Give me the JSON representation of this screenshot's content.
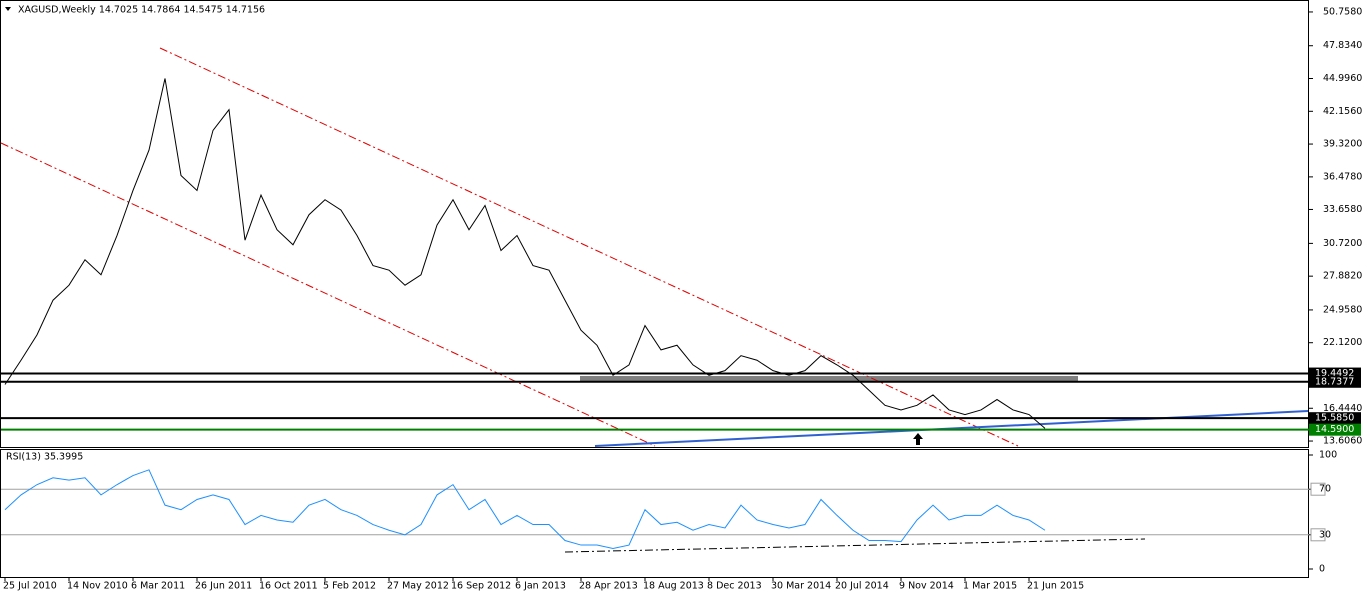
{
  "chart_data": [
    {
      "type": "line",
      "title": "XAGUSD,Weekly  14.7025 14.7864 14.5475 14.7156",
      "color": "#000000",
      "categories": [
        "25 Jul 2010",
        null,
        null,
        null,
        "14 Nov 2010",
        null,
        null,
        null,
        "6 Mar 2011",
        null,
        null,
        null,
        "26 Jun 2011",
        null,
        null,
        null,
        "16 Oct 2011",
        null,
        null,
        null,
        "5 Feb 2012",
        null,
        null,
        null,
        "27 May 2012",
        null,
        null,
        null,
        "16 Sep 2012",
        null,
        null,
        null,
        "6 Jan 2013",
        null,
        null,
        null,
        "28 Apr 2013",
        null,
        null,
        null,
        "18 Aug 2013",
        null,
        null,
        null,
        "8 Dec 2013",
        null,
        null,
        null,
        "30 Mar 2014",
        null,
        null,
        null,
        "20 Jul 2014",
        null,
        null,
        null,
        "9 Nov 2014",
        null,
        null,
        null,
        "1 Mar 2015",
        null,
        null,
        null,
        "21 Jun 2015",
        null
      ],
      "values": [
        18.5,
        20.6,
        22.8,
        25.8,
        27.1,
        29.3,
        28.0,
        31.4,
        35.3,
        38.8,
        45.0,
        36.6,
        35.3,
        40.5,
        42.3,
        31.0,
        34.9,
        31.9,
        30.6,
        33.2,
        34.5,
        33.6,
        31.4,
        28.8,
        28.4,
        27.1,
        28.0,
        32.3,
        34.5,
        31.9,
        34.0,
        30.1,
        31.4,
        28.8,
        28.4,
        25.8,
        23.2,
        21.9,
        19.3,
        20.2,
        23.6,
        21.5,
        21.9,
        20.2,
        19.3,
        19.7,
        21.0,
        20.6,
        19.7,
        19.3,
        19.7,
        21.0,
        20.2,
        19.3,
        18.0,
        16.7,
        16.3,
        16.7,
        17.6,
        16.3,
        15.9,
        16.3,
        17.2,
        16.3,
        15.9,
        14.7
      ],
      "ylim": [
        13.09,
        51.62
      ],
      "yticks": [
        {
          "value": 50.758,
          "label": "50.7580"
        },
        {
          "value": 47.834,
          "label": "47.8340"
        },
        {
          "value": 44.996,
          "label": "44.9960"
        },
        {
          "value": 42.156,
          "label": "42.1560"
        },
        {
          "value": 39.32,
          "label": "39.3200"
        },
        {
          "value": 36.478,
          "label": "36.4780"
        },
        {
          "value": 33.658,
          "label": "33.6580"
        },
        {
          "value": 30.72,
          "label": "30.7200"
        },
        {
          "value": 27.882,
          "label": "27.8820"
        },
        {
          "value": 24.958,
          "label": "24.9580"
        },
        {
          "value": 22.12,
          "label": "22.1200"
        },
        {
          "value": 16.444,
          "label": "16.4440"
        },
        {
          "value": 13.606,
          "label": "13.6060"
        }
      ],
      "levels": [
        {
          "value": 19.4492,
          "color": "#000000"
        },
        {
          "value": 18.7377,
          "color": "#000000"
        },
        {
          "value": 15.585,
          "label": "15.5850",
          "color": "#000000"
        },
        {
          "value": 14.59,
          "label": "14.5900",
          "color": "#008000"
        }
      ]
    },
    {
      "type": "line",
      "title": "RSI(13) 35.3995",
      "color": "#1e90ff",
      "values": [
        52,
        65,
        74,
        80,
        78,
        80,
        65,
        74,
        82,
        87,
        56,
        52,
        61,
        65,
        61,
        39,
        47,
        43,
        41,
        56,
        61,
        52,
        47,
        39,
        34,
        30,
        39,
        65,
        74,
        52,
        61,
        39,
        47,
        39,
        39,
        25,
        21,
        21,
        18,
        21,
        52,
        39,
        41,
        34,
        39,
        36,
        56,
        43,
        39,
        36,
        39,
        61,
        47,
        34,
        25,
        25,
        24,
        43,
        56,
        43,
        47,
        47,
        56,
        47,
        43,
        34
      ],
      "ylim": [
        0,
        100
      ],
      "yticks": [
        100,
        70,
        30,
        0
      ],
      "grid_ticks": [
        70,
        30
      ]
    }
  ]
}
